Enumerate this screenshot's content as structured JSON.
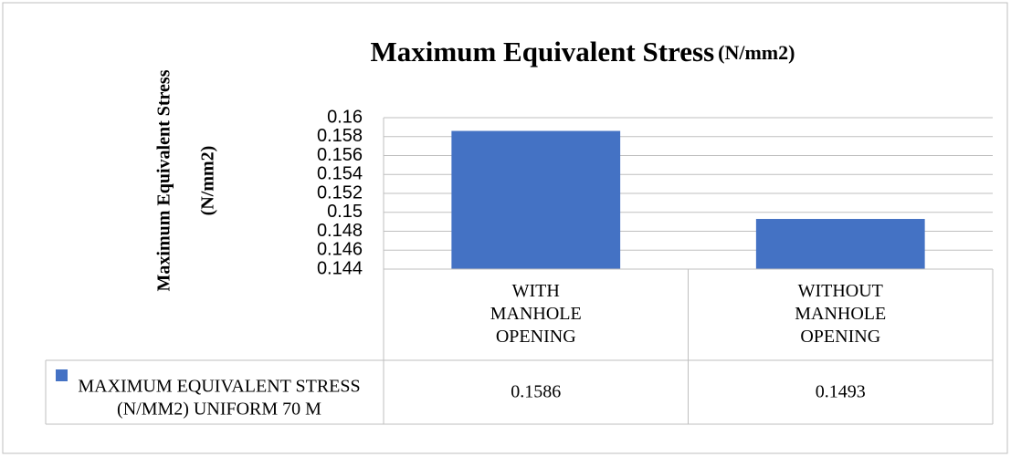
{
  "chart_data": {
    "type": "bar",
    "title": "Maximum Equivalent Stress",
    "title_suffix": "(N/mm2)",
    "ylabel": [
      "Maximum  Equivalent Stress",
      "(N/mm2)"
    ],
    "categories": [
      "WITH MANHOLE OPENING",
      "WITHOUT MANHOLE OPENING"
    ],
    "series": [
      {
        "name": "MAXIMUM EQUIVALENT STRESS (N/MM2) UNIFORM 70 M",
        "color": "#4472c4",
        "values": [
          0.1586,
          0.1493
        ]
      }
    ],
    "ylim": [
      0.144,
      0.16
    ],
    "yticks": [
      0.144,
      0.146,
      0.148,
      0.15,
      0.152,
      0.154,
      0.156,
      0.158,
      0.16
    ],
    "grid": true,
    "data_table": true
  }
}
